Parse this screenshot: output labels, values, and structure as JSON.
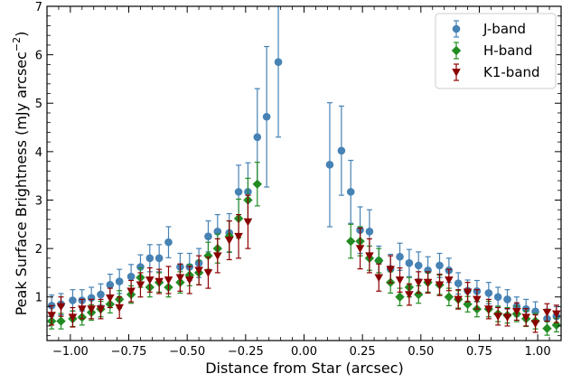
{
  "chart_data": {
    "type": "scatter",
    "xlabel": "Distance from Star (arcsec)",
    "ylabel": "Peak Surface Brightness (mJy arcsec$^{-2}$)",
    "ylabel_main": "Peak Surface Brightness (mJy arcsec",
    "ylabel_sup": "−2",
    "ylabel_close": ")",
    "xlim": [
      -1.1,
      1.1
    ],
    "ylim": [
      0.1,
      7.0
    ],
    "xticks": [
      -1.0,
      -0.75,
      -0.5,
      -0.25,
      0.0,
      0.25,
      0.5,
      0.75,
      1.0
    ],
    "xtick_labels": [
      "−1.00",
      "−0.75",
      "−0.50",
      "−0.25",
      "0.00",
      "0.25",
      "0.50",
      "0.75",
      "1.00"
    ],
    "yticks": [
      1,
      2,
      3,
      4,
      5,
      6,
      7
    ],
    "ytick_labels": [
      "1",
      "2",
      "3",
      "4",
      "5",
      "6",
      "7"
    ],
    "grid": false,
    "legend_position": "top-right",
    "series": [
      {
        "name": "J-band",
        "color": "#4682b4",
        "marker": "circle",
        "points": [
          {
            "x": -1.08,
            "y": 0.82,
            "err": 0.22
          },
          {
            "x": -1.04,
            "y": 0.85,
            "err": 0.22
          },
          {
            "x": -0.99,
            "y": 0.93,
            "err": 0.22
          },
          {
            "x": -0.95,
            "y": 0.93,
            "err": 0.22
          },
          {
            "x": -0.91,
            "y": 0.98,
            "err": 0.22
          },
          {
            "x": -0.87,
            "y": 1.05,
            "err": 0.22
          },
          {
            "x": -0.83,
            "y": 1.25,
            "err": 0.22
          },
          {
            "x": -0.79,
            "y": 1.32,
            "err": 0.25
          },
          {
            "x": -0.74,
            "y": 1.42,
            "err": 0.25
          },
          {
            "x": -0.7,
            "y": 1.62,
            "err": 0.25
          },
          {
            "x": -0.66,
            "y": 1.8,
            "err": 0.28
          },
          {
            "x": -0.62,
            "y": 1.8,
            "err": 0.28
          },
          {
            "x": -0.58,
            "y": 2.13,
            "err": 0.32
          },
          {
            "x": -0.53,
            "y": 1.62,
            "err": 0.28
          },
          {
            "x": -0.49,
            "y": 1.62,
            "err": 0.28
          },
          {
            "x": -0.45,
            "y": 1.7,
            "err": 0.3
          },
          {
            "x": -0.41,
            "y": 2.25,
            "err": 0.32
          },
          {
            "x": -0.37,
            "y": 2.35,
            "err": 0.35
          },
          {
            "x": -0.32,
            "y": 2.32,
            "err": 0.4
          },
          {
            "x": -0.28,
            "y": 3.17,
            "err": 0.55
          },
          {
            "x": -0.24,
            "y": 3.17,
            "err": 0.6
          },
          {
            "x": -0.2,
            "y": 4.3,
            "err": 1.0
          },
          {
            "x": -0.16,
            "y": 4.72,
            "err": 1.45
          },
          {
            "x": -0.11,
            "y": 5.85,
            "err": 1.55
          },
          {
            "x": 0.11,
            "y": 3.73,
            "err": 1.28
          },
          {
            "x": 0.16,
            "y": 4.02,
            "err": 0.92
          },
          {
            "x": 0.2,
            "y": 3.17,
            "err": 0.65
          },
          {
            "x": 0.24,
            "y": 2.38,
            "err": 0.48
          },
          {
            "x": 0.28,
            "y": 2.35,
            "err": 0.45
          },
          {
            "x": 0.32,
            "y": 1.75,
            "err": 0.3
          },
          {
            "x": 0.37,
            "y": 1.58,
            "err": 0.3
          },
          {
            "x": 0.41,
            "y": 1.83,
            "err": 0.28
          },
          {
            "x": 0.45,
            "y": 1.7,
            "err": 0.28
          },
          {
            "x": 0.49,
            "y": 1.65,
            "err": 0.28
          },
          {
            "x": 0.53,
            "y": 1.55,
            "err": 0.28
          },
          {
            "x": 0.58,
            "y": 1.65,
            "err": 0.25
          },
          {
            "x": 0.62,
            "y": 1.55,
            "err": 0.25
          },
          {
            "x": 0.66,
            "y": 1.28,
            "err": 0.22
          },
          {
            "x": 0.7,
            "y": 1.13,
            "err": 0.22
          },
          {
            "x": 0.74,
            "y": 1.12,
            "err": 0.22
          },
          {
            "x": 0.79,
            "y": 1.08,
            "err": 0.22
          },
          {
            "x": 0.83,
            "y": 1.0,
            "err": 0.2
          },
          {
            "x": 0.87,
            "y": 0.95,
            "err": 0.2
          },
          {
            "x": 0.91,
            "y": 0.8,
            "err": 0.2
          },
          {
            "x": 0.95,
            "y": 0.75,
            "err": 0.2
          },
          {
            "x": 0.99,
            "y": 0.7,
            "err": 0.2
          },
          {
            "x": 1.04,
            "y": 0.55,
            "err": 0.2
          },
          {
            "x": 1.08,
            "y": 0.6,
            "err": 0.2
          }
        ]
      },
      {
        "name": "H-band",
        "color": "#228b22",
        "marker": "diamond",
        "points": [
          {
            "x": -1.08,
            "y": 0.5,
            "err": 0.16
          },
          {
            "x": -1.04,
            "y": 0.5,
            "err": 0.16
          },
          {
            "x": -0.99,
            "y": 0.55,
            "err": 0.16
          },
          {
            "x": -0.95,
            "y": 0.58,
            "err": 0.16
          },
          {
            "x": -0.91,
            "y": 0.68,
            "err": 0.16
          },
          {
            "x": -0.87,
            "y": 0.75,
            "err": 0.16
          },
          {
            "x": -0.83,
            "y": 0.85,
            "err": 0.18
          },
          {
            "x": -0.79,
            "y": 0.95,
            "err": 0.18
          },
          {
            "x": -0.74,
            "y": 1.05,
            "err": 0.18
          },
          {
            "x": -0.7,
            "y": 1.4,
            "err": 0.2
          },
          {
            "x": -0.66,
            "y": 1.2,
            "err": 0.2
          },
          {
            "x": -0.62,
            "y": 1.3,
            "err": 0.2
          },
          {
            "x": -0.58,
            "y": 1.2,
            "err": 0.2
          },
          {
            "x": -0.53,
            "y": 1.3,
            "err": 0.22
          },
          {
            "x": -0.49,
            "y": 1.45,
            "err": 0.22
          },
          {
            "x": -0.45,
            "y": 1.5,
            "err": 0.25
          },
          {
            "x": -0.41,
            "y": 1.85,
            "err": 0.28
          },
          {
            "x": -0.37,
            "y": 2.0,
            "err": 0.3
          },
          {
            "x": -0.32,
            "y": 2.25,
            "err": 0.32
          },
          {
            "x": -0.28,
            "y": 2.62,
            "err": 0.4
          },
          {
            "x": -0.24,
            "y": 3.0,
            "err": 0.45
          },
          {
            "x": -0.2,
            "y": 3.33,
            "err": 0.45
          },
          {
            "x": 0.2,
            "y": 2.15,
            "err": 0.35
          },
          {
            "x": 0.24,
            "y": 2.15,
            "err": 0.3
          },
          {
            "x": 0.28,
            "y": 1.8,
            "err": 0.25
          },
          {
            "x": 0.32,
            "y": 1.75,
            "err": 0.25
          },
          {
            "x": 0.37,
            "y": 1.3,
            "err": 0.22
          },
          {
            "x": 0.41,
            "y": 1.0,
            "err": 0.18
          },
          {
            "x": 0.45,
            "y": 1.2,
            "err": 0.2
          },
          {
            "x": 0.49,
            "y": 1.05,
            "err": 0.18
          },
          {
            "x": 0.53,
            "y": 1.3,
            "err": 0.2
          },
          {
            "x": 0.58,
            "y": 1.25,
            "err": 0.2
          },
          {
            "x": 0.62,
            "y": 1.0,
            "err": 0.18
          },
          {
            "x": 0.66,
            "y": 0.95,
            "err": 0.18
          },
          {
            "x": 0.7,
            "y": 0.85,
            "err": 0.16
          },
          {
            "x": 0.74,
            "y": 0.75,
            "err": 0.16
          },
          {
            "x": 0.79,
            "y": 0.75,
            "err": 0.16
          },
          {
            "x": 0.83,
            "y": 0.65,
            "err": 0.16
          },
          {
            "x": 0.87,
            "y": 0.62,
            "err": 0.16
          },
          {
            "x": 0.91,
            "y": 0.65,
            "err": 0.16
          },
          {
            "x": 0.95,
            "y": 0.55,
            "err": 0.16
          },
          {
            "x": 0.99,
            "y": 0.5,
            "err": 0.16
          },
          {
            "x": 1.04,
            "y": 0.35,
            "err": 0.14
          },
          {
            "x": 1.08,
            "y": 0.42,
            "err": 0.14
          }
        ]
      },
      {
        "name": "K1-band",
        "color": "#8b0000",
        "marker": "triangle-down",
        "points": [
          {
            "x": -1.08,
            "y": 0.62,
            "err": 0.2
          },
          {
            "x": -1.04,
            "y": 0.8,
            "err": 0.2
          },
          {
            "x": -0.99,
            "y": 0.58,
            "err": 0.2
          },
          {
            "x": -0.95,
            "y": 0.75,
            "err": 0.2
          },
          {
            "x": -0.91,
            "y": 0.75,
            "err": 0.2
          },
          {
            "x": -0.87,
            "y": 0.75,
            "err": 0.2
          },
          {
            "x": -0.83,
            "y": 0.98,
            "err": 0.2
          },
          {
            "x": -0.79,
            "y": 0.78,
            "err": 0.22
          },
          {
            "x": -0.74,
            "y": 1.12,
            "err": 0.22
          },
          {
            "x": -0.7,
            "y": 1.25,
            "err": 0.25
          },
          {
            "x": -0.66,
            "y": 1.35,
            "err": 0.25
          },
          {
            "x": -0.62,
            "y": 1.32,
            "err": 0.25
          },
          {
            "x": -0.58,
            "y": 1.35,
            "err": 0.28
          },
          {
            "x": -0.53,
            "y": 1.4,
            "err": 0.28
          },
          {
            "x": -0.49,
            "y": 1.35,
            "err": 0.28
          },
          {
            "x": -0.45,
            "y": 1.55,
            "err": 0.3
          },
          {
            "x": -0.41,
            "y": 1.5,
            "err": 0.32
          },
          {
            "x": -0.37,
            "y": 1.85,
            "err": 0.35
          },
          {
            "x": -0.32,
            "y": 2.17,
            "err": 0.4
          },
          {
            "x": -0.28,
            "y": 2.25,
            "err": 0.45
          },
          {
            "x": -0.24,
            "y": 2.55,
            "err": 0.55
          },
          {
            "x": 0.24,
            "y": 2.0,
            "err": 0.42
          },
          {
            "x": 0.28,
            "y": 1.85,
            "err": 0.35
          },
          {
            "x": 0.32,
            "y": 1.4,
            "err": 0.28
          },
          {
            "x": 0.37,
            "y": 1.57,
            "err": 0.28
          },
          {
            "x": 0.41,
            "y": 1.35,
            "err": 0.25
          },
          {
            "x": 0.45,
            "y": 1.05,
            "err": 0.22
          },
          {
            "x": 0.49,
            "y": 1.3,
            "err": 0.22
          },
          {
            "x": 0.53,
            "y": 1.3,
            "err": 0.22
          },
          {
            "x": 0.58,
            "y": 1.25,
            "err": 0.22
          },
          {
            "x": 0.62,
            "y": 1.35,
            "err": 0.22
          },
          {
            "x": 0.66,
            "y": 0.95,
            "err": 0.2
          },
          {
            "x": 0.7,
            "y": 1.1,
            "err": 0.2
          },
          {
            "x": 0.74,
            "y": 0.95,
            "err": 0.2
          },
          {
            "x": 0.79,
            "y": 0.75,
            "err": 0.2
          },
          {
            "x": 0.83,
            "y": 0.6,
            "err": 0.18
          },
          {
            "x": 0.87,
            "y": 0.58,
            "err": 0.18
          },
          {
            "x": 0.91,
            "y": 0.7,
            "err": 0.18
          },
          {
            "x": 0.95,
            "y": 0.58,
            "err": 0.18
          },
          {
            "x": 0.99,
            "y": 0.45,
            "err": 0.18
          },
          {
            "x": 1.04,
            "y": 0.68,
            "err": 0.18
          },
          {
            "x": 1.08,
            "y": 0.65,
            "err": 0.18
          }
        ]
      }
    ]
  }
}
